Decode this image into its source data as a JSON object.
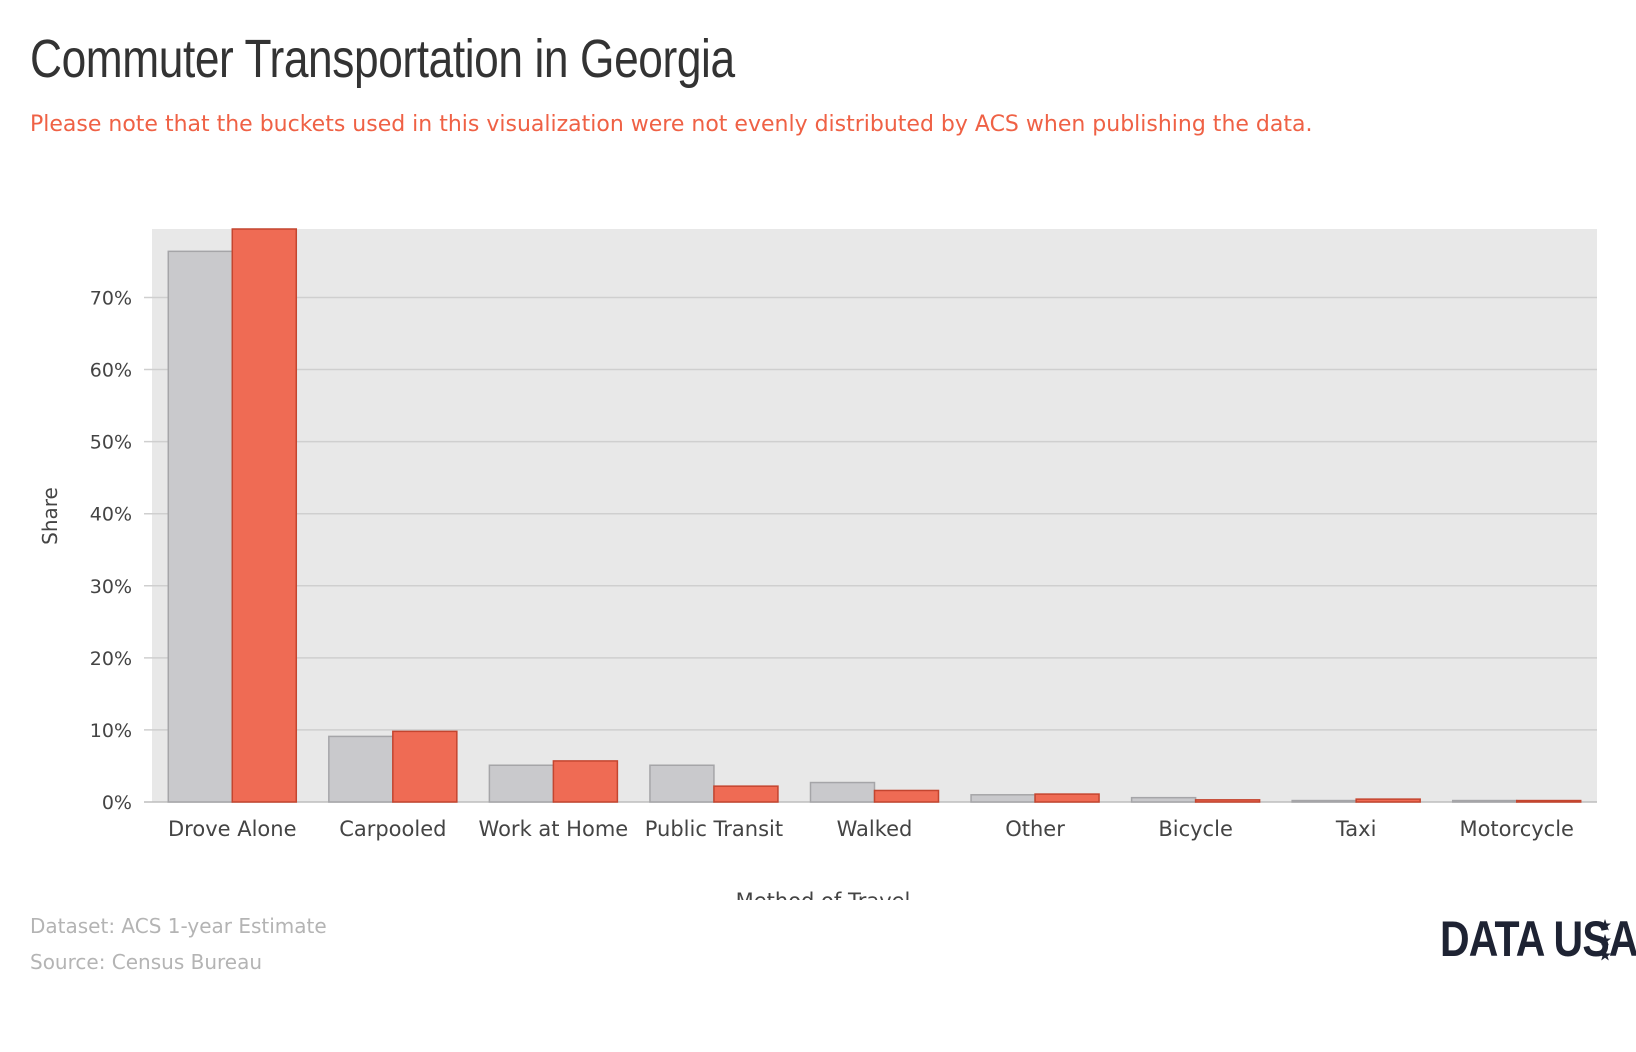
{
  "header": {
    "title": "Commuter Transportation in Georgia",
    "subtitle": "Please note that the buckets used in this visualization were not evenly distributed by ACS when publishing the data."
  },
  "footer": {
    "dataset": "Dataset: ACS 1-year Estimate",
    "source": "Source: Census Bureau",
    "logo_text": "DATA USA"
  },
  "colors": {
    "series_a": "#c9c9cc",
    "series_a_stroke": "#a5a5a8",
    "series_b": "#ef6b54",
    "series_b_stroke": "#c4452f",
    "plot_background": "#e8e8e8",
    "gridline": "#cfcfcf",
    "subtitle": "#ef6145"
  },
  "chart_data": {
    "type": "bar",
    "title": "Commuter Transportation in Georgia",
    "subtitle": "Please note that the buckets used in this visualization were not evenly distributed by ACS when publishing the data.",
    "xlabel": "Method of Travel",
    "ylabel": "Share",
    "categories": [
      "Drove Alone",
      "Carpooled",
      "Work at Home",
      "Public Transit",
      "Walked",
      "Other",
      "Bicycle",
      "Taxi",
      "Motorcycle"
    ],
    "series": [
      {
        "values": [
          76.4,
          9.1,
          5.1,
          5.1,
          2.7,
          1.0,
          0.6,
          0.2,
          0.2
        ]
      },
      {
        "values": [
          79.5,
          9.8,
          5.7,
          2.2,
          1.6,
          1.1,
          0.3,
          0.4,
          0.2
        ]
      }
    ],
    "yticks": [
      0,
      10,
      20,
      30,
      40,
      50,
      60,
      70
    ],
    "ytick_labels": [
      "0%",
      "10%",
      "20%",
      "30%",
      "40%",
      "50%",
      "60%",
      "70%"
    ],
    "ylim": [
      0,
      79.5
    ],
    "grid": true,
    "legend": "none"
  }
}
